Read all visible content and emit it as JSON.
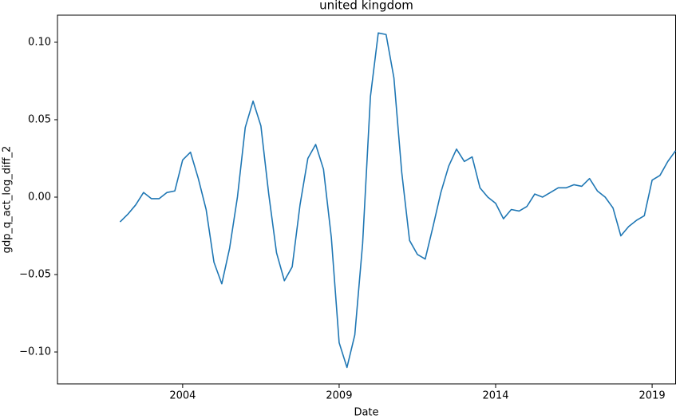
{
  "chart_data": {
    "type": "line",
    "title": "united kingdom",
    "x_label": "Date",
    "y_label": "gdp_q_act_log_diff_2",
    "x": [
      2002,
      2002.25,
      2002.5,
      2002.75,
      2003,
      2003.25,
      2003.5,
      2003.75,
      2004,
      2004.25,
      2004.5,
      2004.75,
      2005,
      2005.25,
      2005.5,
      2005.75,
      2006,
      2006.25,
      2006.5,
      2006.75,
      2007,
      2007.25,
      2007.5,
      2007.75,
      2008,
      2008.25,
      2008.5,
      2008.75,
      2009,
      2009.25,
      2009.5,
      2009.75,
      2010,
      2010.25,
      2010.5,
      2010.75,
      2011,
      2011.25,
      2011.5,
      2011.75,
      2012,
      2012.25,
      2012.5,
      2012.75,
      2013,
      2013.25,
      2013.5,
      2013.75,
      2014,
      2014.25,
      2014.5,
      2014.75,
      2015,
      2015.25,
      2015.5,
      2015.75,
      2016,
      2016.25,
      2016.5,
      2016.75,
      2017,
      2017.25,
      2017.5,
      2017.75,
      2018,
      2018.25,
      2018.5,
      2018.75,
      2019,
      2019.25,
      2019.5,
      2019.75
    ],
    "series": [
      {
        "name": "gdp_q_act_log_diff_2",
        "color": "#1f77b4",
        "values": [
          -0.016,
          -0.011,
          -0.005,
          0.003,
          -0.001,
          -0.001,
          0.003,
          0.004,
          0.024,
          0.029,
          0.012,
          -0.008,
          -0.042,
          -0.056,
          -0.033,
          0.0,
          0.045,
          0.062,
          0.046,
          0.002,
          -0.036,
          -0.054,
          -0.045,
          -0.005,
          0.025,
          0.034,
          0.018,
          -0.026,
          -0.094,
          -0.11,
          -0.089,
          -0.03,
          0.065,
          0.106,
          0.105,
          0.077,
          0.016,
          -0.028,
          -0.037,
          -0.04,
          -0.019,
          0.003,
          0.02,
          0.031,
          0.023,
          0.026,
          0.006,
          0.0,
          -0.004,
          -0.014,
          -0.008,
          -0.009,
          -0.006,
          0.002,
          0.0,
          0.003,
          0.006,
          0.006,
          0.008,
          0.007,
          0.012,
          0.004,
          0.0,
          -0.007,
          -0.025,
          -0.019,
          -0.015,
          -0.012,
          0.011,
          0.014,
          0.023,
          0.03
        ]
      }
    ],
    "xlim": [
      2000,
      2019.75
    ],
    "xticks": [
      2004,
      2009,
      2014,
      2019
    ],
    "ylim": [
      -0.1206,
      0.1175
    ],
    "yticks": [
      {
        "value": -0.1,
        "label": "−0.10"
      },
      {
        "value": -0.05,
        "label": "−0.05"
      },
      {
        "value": 0.0,
        "label": "0.00"
      },
      {
        "value": 0.05,
        "label": "0.05"
      },
      {
        "value": 0.1,
        "label": "0.10"
      }
    ],
    "grid": false
  }
}
